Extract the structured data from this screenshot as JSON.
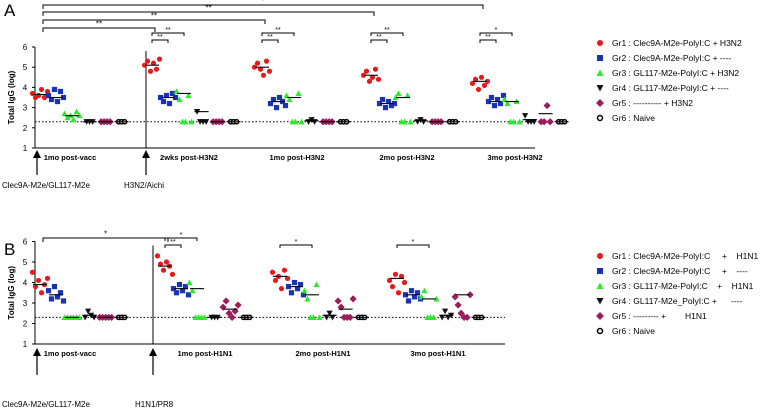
{
  "chart_data": [
    {
      "type": "scatter",
      "panel_label": "A",
      "ylabel": "Total IgG (log)",
      "ylim": [
        1,
        6
      ],
      "yticks": [
        "1",
        "2",
        "3",
        "4",
        "5",
        "6"
      ],
      "baseline_y": 2.3,
      "timepoints": [
        "1mo post-vacc",
        "2wks post-H3N2",
        "1mo post-H3N2",
        "2mo post-H3N2",
        "3mo post-H3N2"
      ],
      "arrows": [
        "Clec9A-M2e/GL117-M2e",
        "H3N2/Aichi"
      ],
      "legend": [
        {
          "label": "Gr1 : Clec9A-M2e-PolyI:C + H3N2",
          "marker": "circle",
          "color": "#e8191b"
        },
        {
          "label": "Gr2 : Clec9A-M2e-PolyI:C + ----",
          "marker": "square",
          "color": "#1a33b5"
        },
        {
          "label": "Gr3 : GL117-M2e-PolyI:C + H3N2",
          "marker": "triangle-up",
          "color": "#2ee82e"
        },
        {
          "label": "Gr4 : GL117-M2e-PolyI:C + ----",
          "marker": "triangle-down",
          "color": "#111111"
        },
        {
          "label": "Gr5 : ---------- + H3N2",
          "marker": "diamond",
          "color": "#9c1d5c"
        },
        {
          "label": "Gr6 : Naive",
          "marker": "open-circle",
          "color": "#000000"
        }
      ],
      "groups": [
        [
          [
            3.7,
            3.5,
            3.6,
            3.9,
            3.5,
            3.8
          ],
          [
            3.6,
            3.4,
            3.9,
            3.3,
            3.8,
            3.5
          ],
          [
            2.7,
            2.5,
            2.6,
            2.4,
            2.8,
            2.6
          ],
          [
            2.3,
            2.3,
            2.3
          ],
          [
            2.3,
            2.3,
            2.3,
            2.3
          ],
          [
            2.3,
            2.3,
            2.3
          ]
        ],
        [
          [
            5.1,
            5.3,
            4.8,
            5.2,
            4.9,
            5.4
          ],
          [
            3.5,
            3.3,
            3.6,
            3.2,
            3.7,
            3.5
          ],
          [
            3.8,
            3.4,
            2.3,
            2.3,
            3.6,
            2.3
          ],
          [
            2.8,
            2.3,
            2.3,
            2.3
          ],
          [
            2.3,
            2.3,
            2.3,
            2.3
          ],
          [
            2.3,
            2.3,
            2.3
          ]
        ],
        [
          [
            5.0,
            5.2,
            4.9,
            4.6,
            5.3,
            4.8
          ],
          [
            3.2,
            3.4,
            3.0,
            3.5,
            3.3,
            3.1
          ],
          [
            3.6,
            3.4,
            2.3,
            2.3,
            3.7,
            2.3
          ],
          [
            2.3,
            2.4,
            2.3
          ],
          [
            2.3,
            2.3,
            2.3,
            2.3
          ],
          [
            2.3,
            2.3,
            2.3
          ]
        ],
        [
          [
            4.6,
            4.8,
            4.3,
            4.5,
            4.9,
            4.4
          ],
          [
            3.2,
            3.4,
            3.0,
            3.3,
            3.1,
            3.2
          ],
          [
            3.5,
            3.7,
            2.3,
            2.3,
            3.6,
            2.3
          ],
          [
            2.3,
            2.4,
            2.3
          ],
          [
            2.3,
            2.3,
            2.3,
            2.3
          ],
          [
            2.3,
            2.3,
            2.3
          ]
        ],
        [
          [
            4.2,
            4.4,
            3.9,
            4.5,
            4.1,
            4.3
          ],
          [
            3.3,
            3.5,
            3.1,
            3.4,
            3.2,
            3.6
          ],
          [
            3.4,
            3.2,
            2.3,
            2.3,
            3.3,
            2.3
          ],
          [
            2.6,
            2.3,
            2.3,
            2.3
          ],
          [
            2.3,
            2.3,
            3.1,
            2.3
          ],
          [
            2.3,
            2.3,
            2.3
          ]
        ]
      ],
      "means": [
        [
          3.65,
          3.5,
          2.6,
          2.3,
          2.3,
          2.3
        ],
        [
          5.1,
          3.5,
          3.7,
          2.8,
          2.3,
          2.3
        ],
        [
          5.0,
          3.3,
          3.5,
          2.35,
          2.3,
          2.3
        ],
        [
          4.6,
          3.2,
          3.5,
          2.35,
          2.3,
          2.3
        ],
        [
          4.3,
          3.3,
          3.3,
          2.4,
          2.7,
          2.3
        ]
      ],
      "long_brackets": [
        {
          "from": 0,
          "to": 1,
          "label": "**"
        },
        {
          "from": 0,
          "to": 2,
          "label": "**"
        },
        {
          "from": 0,
          "to": 3,
          "label": "**"
        },
        {
          "from": 0,
          "to": 4,
          "label": "*"
        }
      ],
      "local_brackets": [
        {
          "timepoint": 1,
          "label": "**",
          "to_group": 1,
          "level": 0
        },
        {
          "timepoint": 1,
          "label": "**",
          "to_group": 2,
          "level": 1
        },
        {
          "timepoint": 2,
          "label": "**",
          "to_group": 1,
          "level": 0
        },
        {
          "timepoint": 2,
          "label": "**",
          "to_group": 2,
          "level": 1
        },
        {
          "timepoint": 3,
          "label": "**",
          "to_group": 1,
          "level": 0
        },
        {
          "timepoint": 3,
          "label": "**",
          "to_group": 2,
          "level": 1
        },
        {
          "timepoint": 4,
          "label": "**",
          "to_group": 1,
          "level": 0
        },
        {
          "timepoint": 4,
          "label": "*",
          "to_group": 2,
          "level": 1
        }
      ]
    },
    {
      "type": "scatter",
      "panel_label": "B",
      "ylabel": "Total IgG (log)",
      "ylim": [
        1,
        6
      ],
      "yticks": [
        "1",
        "2",
        "3",
        "4",
        "5",
        "6"
      ],
      "baseline_y": 2.3,
      "timepoints": [
        "1mo post-vacc",
        "1mo post-H1N1",
        "2mo post-H1N1",
        "3mo post-H1N1"
      ],
      "arrows": [
        "Clec9A-M2e/GL117-M2e",
        "H1N1/PR8"
      ],
      "legend": [
        {
          "label": "Gr1 : Clec9A-M2e-PolyI:C     +    H1N1",
          "marker": "circle",
          "color": "#e8191b"
        },
        {
          "label": "Gr2 : Clec9A-M2e-PolyI:C     +    ----",
          "marker": "square",
          "color": "#1a33b5"
        },
        {
          "label": "Gr3 : GL117-M2e-PolyI:C    +    H1N1",
          "marker": "triangle-up",
          "color": "#2ee82e"
        },
        {
          "label": "Gr4 : GL117-M2e_PolyI:C +      ----",
          "marker": "triangle-down",
          "color": "#111111"
        },
        {
          "label": "Gr5 : --------- +        H1N1",
          "marker": "diamond",
          "color": "#9c1d5c"
        },
        {
          "label": "Gr6 : Naive",
          "marker": "open-circle",
          "color": "#000000"
        }
      ],
      "groups": [
        [
          [
            4.5,
            3.8,
            4.1,
            3.5,
            3.9,
            4.2
          ],
          [
            3.6,
            3.2,
            3.8,
            3.3,
            3.5,
            3.1
          ],
          [
            2.3,
            2.3,
            2.3,
            2.3,
            2.3,
            2.3
          ],
          [
            2.3,
            2.6,
            2.4,
            2.3
          ],
          [
            2.3,
            2.3,
            2.3,
            2.3,
            2.3
          ],
          [
            2.3,
            2.3,
            2.3
          ]
        ],
        [
          [
            5.3,
            4.9,
            4.6,
            5.0,
            4.8,
            4.4
          ],
          [
            3.7,
            3.5,
            3.9,
            3.6,
            3.8,
            3.4
          ],
          [
            4.0,
            3.6,
            2.3,
            2.3,
            2.3,
            2.3
          ],
          [
            2.3,
            2.3,
            2.3
          ],
          [
            2.8,
            3.1,
            2.5,
            2.3,
            2.6,
            2.9
          ],
          [
            2.3,
            2.3,
            2.3
          ]
        ],
        [
          [
            4.5,
            4.1,
            4.3,
            3.7,
            4.6,
            4.2
          ],
          [
            3.8,
            3.5,
            4.0,
            3.7,
            3.9,
            3.4
          ],
          [
            3.6,
            3.2,
            2.3,
            2.3,
            3.9,
            2.3
          ],
          [
            2.3,
            2.5,
            2.3
          ],
          [
            3.1,
            2.8,
            2.3,
            2.3,
            2.3,
            3.2
          ],
          [
            2.3,
            2.3,
            2.3
          ]
        ],
        [
          [
            4.1,
            3.8,
            4.4,
            3.5,
            4.3,
            4.0
          ],
          [
            3.4,
            3.1,
            3.6,
            3.3,
            3.5,
            3.2
          ],
          [
            3.3,
            3.6,
            2.3,
            2.3,
            2.3,
            3.2
          ],
          [
            2.3,
            2.6,
            2.3,
            2.4
          ],
          [
            3.3,
            2.9,
            2.5,
            2.3,
            2.3,
            3.4
          ],
          [
            2.3,
            2.3,
            2.3
          ]
        ]
      ],
      "means": [
        [
          3.9,
          3.4,
          2.3,
          2.4,
          2.3,
          2.3
        ],
        [
          4.8,
          3.7,
          3.7,
          2.3,
          2.7,
          2.3
        ],
        [
          4.3,
          3.8,
          3.4,
          2.4,
          2.7,
          2.3
        ],
        [
          4.2,
          3.4,
          3.2,
          2.4,
          3.4,
          2.3
        ]
      ],
      "long_brackets": [
        {
          "from": 0,
          "to": 1,
          "label": "*"
        }
      ],
      "local_brackets": [
        {
          "timepoint": 1,
          "label": "**",
          "to_group": 1,
          "level": 0
        },
        {
          "timepoint": 1,
          "label": "*",
          "to_group": 2,
          "level": 1
        },
        {
          "timepoint": 2,
          "label": "*",
          "to_group": 2,
          "level": 0
        },
        {
          "timepoint": 3,
          "label": "*",
          "to_group": 2,
          "level": 0
        }
      ]
    }
  ]
}
